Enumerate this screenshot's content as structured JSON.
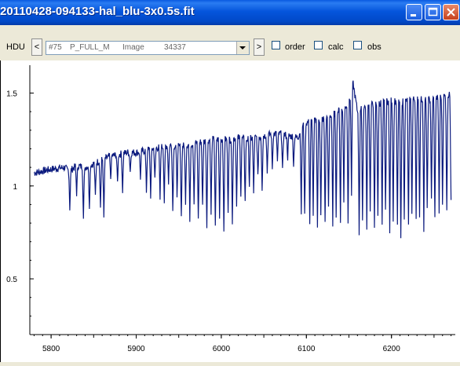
{
  "window": {
    "title": "20110428-094133-hal_blu-3x0.5s.fit"
  },
  "toolbar": {
    "hdu_label": "HDU",
    "prev_label": "<",
    "next_label": ">",
    "hdu_select": {
      "index": "#75",
      "name": "P_FULL_M",
      "type": "Image",
      "size": "34337"
    },
    "checkboxes": [
      {
        "label": "order",
        "checked": false
      },
      {
        "label": "calc",
        "checked": false
      },
      {
        "label": "obs",
        "checked": false
      }
    ]
  },
  "chart_data": {
    "type": "line",
    "title": "",
    "xlabel": "",
    "ylabel": "",
    "xlim": [
      5775,
      6275
    ],
    "ylim": [
      0.2,
      1.65
    ],
    "x_ticks": [
      5800,
      5900,
      6000,
      6100,
      6200
    ],
    "y_ticks": [
      0.5,
      1,
      1.5
    ],
    "x_tick_labels": [
      "5800",
      "5900",
      "6000",
      "6100",
      "6200"
    ],
    "y_tick_labels": [
      "0.5",
      "1",
      "1.5"
    ],
    "grid": false,
    "line_color": "#0b1a7e",
    "series": [
      {
        "x": [
          5780,
          5800,
          5815,
          5822,
          5830,
          5840,
          5850,
          5860,
          5870,
          5880,
          5890,
          5900,
          5910,
          5920,
          5930,
          5940,
          5950,
          5960,
          5970,
          5980,
          5990,
          6000,
          6010,
          6020,
          6030,
          6040,
          6050,
          6060,
          6070,
          6080,
          6090,
          6095,
          6100,
          6110,
          6120,
          6130,
          6140,
          6150,
          6155,
          6160,
          6170,
          6180,
          6190,
          6200,
          6210,
          6220,
          6230,
          6240,
          6250,
          6260,
          6270
        ],
        "y": [
          1.07,
          1.09,
          1.1,
          1.08,
          1.11,
          1.1,
          1.12,
          1.14,
          1.16,
          1.17,
          1.18,
          1.18,
          1.19,
          1.2,
          1.21,
          1.22,
          1.21,
          1.22,
          1.23,
          1.24,
          1.25,
          1.25,
          1.25,
          1.26,
          1.25,
          1.26,
          1.27,
          1.28,
          1.28,
          1.27,
          1.26,
          1.32,
          1.34,
          1.35,
          1.36,
          1.38,
          1.41,
          1.44,
          1.55,
          1.4,
          1.43,
          1.44,
          1.45,
          1.46,
          1.45,
          1.46,
          1.47,
          1.46,
          1.47,
          1.48,
          1.49
        ]
      }
    ],
    "absorption_dips": [
      {
        "x": 5822,
        "depth": 0.2
      },
      {
        "x": 5830,
        "depth": 0.15
      },
      {
        "x": 5838,
        "depth": 0.28
      },
      {
        "x": 5845,
        "depth": 0.22
      },
      {
        "x": 5852,
        "depth": 0.18
      },
      {
        "x": 5858,
        "depth": 0.25
      },
      {
        "x": 5862,
        "depth": 0.32
      },
      {
        "x": 5870,
        "depth": 0.12
      },
      {
        "x": 5878,
        "depth": 0.15
      },
      {
        "x": 5884,
        "depth": 0.2
      },
      {
        "x": 5893,
        "depth": 0.1
      },
      {
        "x": 5905,
        "depth": 0.14
      },
      {
        "x": 5912,
        "depth": 0.22
      },
      {
        "x": 5917,
        "depth": 0.25
      },
      {
        "x": 5922,
        "depth": 0.17
      },
      {
        "x": 5928,
        "depth": 0.28
      },
      {
        "x": 5933,
        "depth": 0.3
      },
      {
        "x": 5938,
        "depth": 0.2
      },
      {
        "x": 5943,
        "depth": 0.35
      },
      {
        "x": 5948,
        "depth": 0.26
      },
      {
        "x": 5953,
        "depth": 0.38
      },
      {
        "x": 5958,
        "depth": 0.3
      },
      {
        "x": 5963,
        "depth": 0.4
      },
      {
        "x": 5968,
        "depth": 0.32
      },
      {
        "x": 5973,
        "depth": 0.42
      },
      {
        "x": 5978,
        "depth": 0.35
      },
      {
        "x": 5983,
        "depth": 0.45
      },
      {
        "x": 5988,
        "depth": 0.4
      },
      {
        "x": 5993,
        "depth": 0.48
      },
      {
        "x": 5998,
        "depth": 0.42
      },
      {
        "x": 6003,
        "depth": 0.5
      },
      {
        "x": 6008,
        "depth": 0.38
      },
      {
        "x": 6013,
        "depth": 0.44
      },
      {
        "x": 6018,
        "depth": 0.35
      },
      {
        "x": 6023,
        "depth": 0.3
      },
      {
        "x": 6028,
        "depth": 0.34
      },
      {
        "x": 6033,
        "depth": 0.25
      },
      {
        "x": 6038,
        "depth": 0.3
      },
      {
        "x": 6043,
        "depth": 0.22
      },
      {
        "x": 6048,
        "depth": 0.28
      },
      {
        "x": 6054,
        "depth": 0.2
      },
      {
        "x": 6060,
        "depth": 0.18
      },
      {
        "x": 6066,
        "depth": 0.15
      },
      {
        "x": 6072,
        "depth": 0.2
      },
      {
        "x": 6078,
        "depth": 0.12
      },
      {
        "x": 6085,
        "depth": 0.15
      },
      {
        "x": 6094,
        "depth": 0.45
      },
      {
        "x": 6098,
        "depth": 0.5
      },
      {
        "x": 6104,
        "depth": 0.55
      },
      {
        "x": 6108,
        "depth": 0.5
      },
      {
        "x": 6113,
        "depth": 0.58
      },
      {
        "x": 6117,
        "depth": 0.52
      },
      {
        "x": 6122,
        "depth": 0.56
      },
      {
        "x": 6126,
        "depth": 0.5
      },
      {
        "x": 6131,
        "depth": 0.6
      },
      {
        "x": 6135,
        "depth": 0.55
      },
      {
        "x": 6140,
        "depth": 0.6
      },
      {
        "x": 6144,
        "depth": 0.5
      },
      {
        "x": 6149,
        "depth": 0.62
      },
      {
        "x": 6153,
        "depth": 0.55
      },
      {
        "x": 6162,
        "depth": 0.66
      },
      {
        "x": 6166,
        "depth": 0.6
      },
      {
        "x": 6171,
        "depth": 0.65
      },
      {
        "x": 6175,
        "depth": 0.58
      },
      {
        "x": 6180,
        "depth": 0.68
      },
      {
        "x": 6184,
        "depth": 0.62
      },
      {
        "x": 6189,
        "depth": 0.66
      },
      {
        "x": 6193,
        "depth": 0.6
      },
      {
        "x": 6198,
        "depth": 0.7
      },
      {
        "x": 6202,
        "depth": 0.63
      },
      {
        "x": 6207,
        "depth": 0.67
      },
      {
        "x": 6211,
        "depth": 0.75
      },
      {
        "x": 6215,
        "depth": 0.62
      },
      {
        "x": 6220,
        "depth": 0.68
      },
      {
        "x": 6224,
        "depth": 0.6
      },
      {
        "x": 6229,
        "depth": 0.65
      },
      {
        "x": 6233,
        "depth": 0.62
      },
      {
        "x": 6238,
        "depth": 0.7
      },
      {
        "x": 6242,
        "depth": 0.6
      },
      {
        "x": 6247,
        "depth": 0.55
      },
      {
        "x": 6251,
        "depth": 0.65
      },
      {
        "x": 6256,
        "depth": 0.62
      },
      {
        "x": 6260,
        "depth": 0.58
      },
      {
        "x": 6265,
        "depth": 0.63
      },
      {
        "x": 6270,
        "depth": 0.55
      }
    ]
  }
}
